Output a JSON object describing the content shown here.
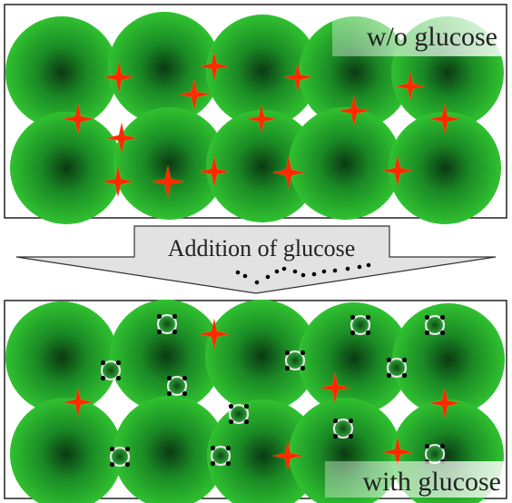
{
  "top_panel": {
    "label": "w/o glucose"
  },
  "bottom_panel": {
    "label": "with glucose"
  },
  "arrow": {
    "label": "Addition of glucose"
  },
  "colors": {
    "cell_edge": "#2ebd2e",
    "cell_center": "#0b3a12",
    "star": "#ff2a00",
    "star_glow": "#ffd24a",
    "bead_core": "#1d7a2a",
    "bead_ring": "#e6e6e6",
    "bead_dot": "#000000",
    "arrow_fill": "#e2e2e2",
    "frame": "#222222"
  },
  "icons": {
    "star": "red-four-point-star-icon",
    "bead": "glucose-bound-bead-icon",
    "cell": "green-sphere-icon"
  }
}
